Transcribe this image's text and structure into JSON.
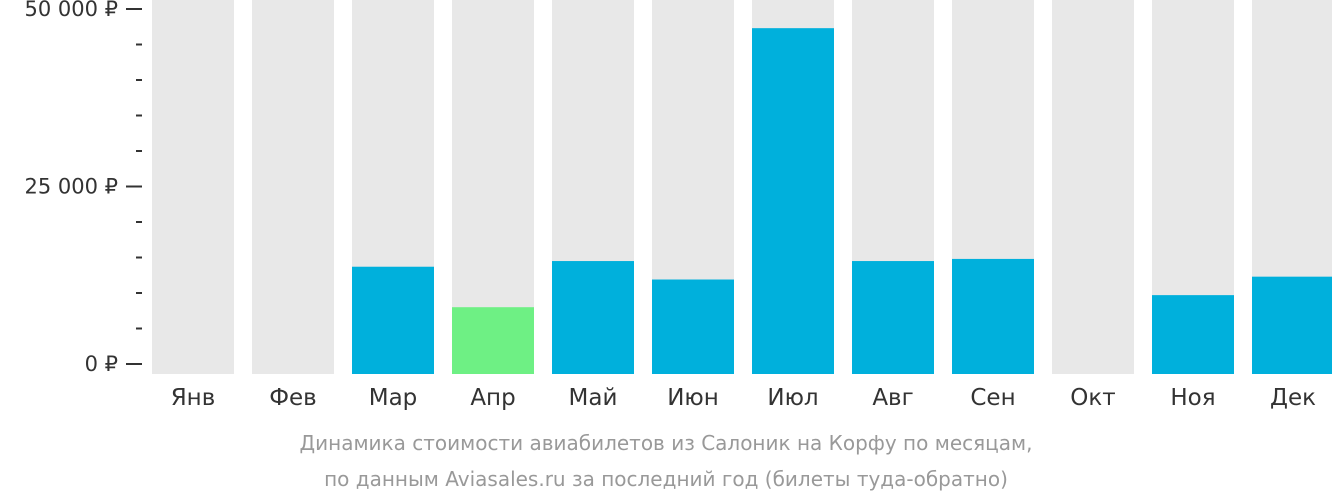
{
  "chart_data": {
    "type": "bar",
    "categories": [
      "Янв",
      "Фев",
      "Мар",
      "Апр",
      "Май",
      "Июн",
      "Июл",
      "Авг",
      "Сен",
      "Окт",
      "Ноя",
      "Дек"
    ],
    "values": [
      null,
      null,
      13700,
      8000,
      14500,
      11900,
      47300,
      14500,
      14800,
      null,
      9700,
      12300
    ],
    "ylim": [
      0,
      50000
    ],
    "yticks": [
      {
        "value": 0,
        "label": "0 ₽"
      },
      {
        "value": 25000,
        "label": "25 000 ₽"
      },
      {
        "value": 50000,
        "label": "50 000 ₽"
      }
    ],
    "minor_tick_step": 5000,
    "highlight_index": 3,
    "colors": {
      "bar": "#00b0dc",
      "highlight": "#6ef084",
      "background_column": "#e8e8e8",
      "axis": "#333333"
    },
    "grid": false,
    "legend": "none"
  },
  "caption": {
    "line1": "Динамика стоимости авиабилетов из Салоник на Корфу по месяцам,",
    "line2": "по данным Aviasales.ru за последний год (билеты туда-обратно)"
  }
}
